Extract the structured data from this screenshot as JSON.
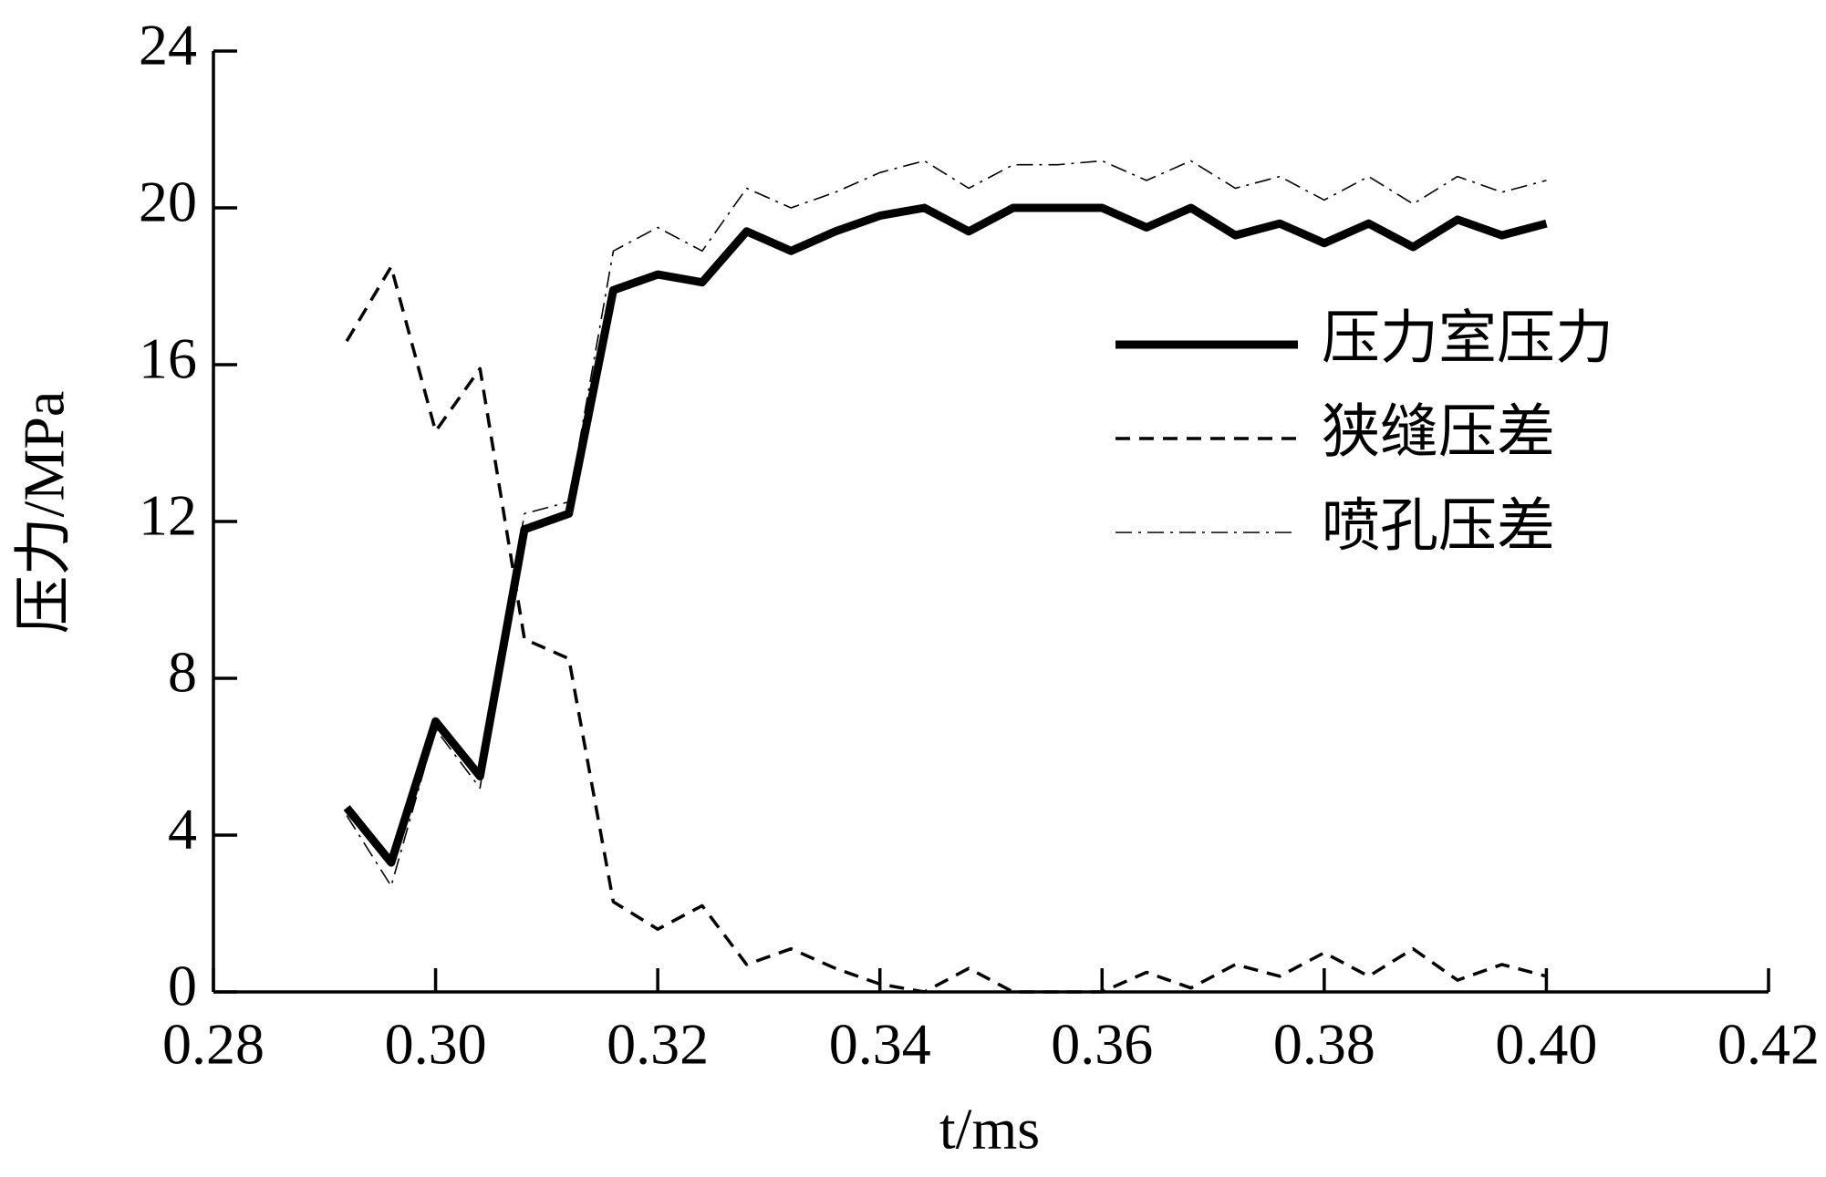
{
  "chart_data": {
    "type": "line",
    "x_label": "t/ms",
    "y_label": "压力/MPa",
    "x": [
      0.292,
      0.296,
      0.3,
      0.304,
      0.308,
      0.312,
      0.316,
      0.32,
      0.324,
      0.328,
      0.332,
      0.336,
      0.34,
      0.344,
      0.348,
      0.352,
      0.356,
      0.36,
      0.364,
      0.368,
      0.372,
      0.376,
      0.38,
      0.384,
      0.388,
      0.392,
      0.396,
      0.4
    ],
    "series": [
      {
        "name": "压力室压力",
        "color": "#000000",
        "style": "solid",
        "values": [
          4.7,
          3.3,
          6.9,
          5.5,
          11.8,
          12.2,
          17.9,
          18.3,
          18.1,
          19.4,
          18.9,
          19.4,
          19.8,
          20.0,
          19.4,
          20.0,
          20.0,
          20.0,
          19.5,
          20.0,
          19.3,
          19.6,
          19.1,
          19.6,
          19.0,
          19.7,
          19.3,
          19.6
        ]
      },
      {
        "name": "狭缝压差",
        "color": "#000000",
        "style": "dashed",
        "values": [
          16.6,
          18.5,
          14.3,
          15.9,
          9.0,
          8.5,
          2.3,
          1.6,
          2.2,
          0.7,
          1.1,
          0.6,
          0.2,
          0.0,
          0.6,
          0.0,
          0.0,
          0.0,
          0.5,
          0.1,
          0.7,
          0.4,
          1.0,
          0.4,
          1.1,
          0.3,
          0.7,
          0.4
        ]
      },
      {
        "name": "喷孔压差",
        "color": "#000000",
        "style": "dashdot",
        "values": [
          4.5,
          2.7,
          6.7,
          5.2,
          12.2,
          12.5,
          18.9,
          19.5,
          18.9,
          20.5,
          20.0,
          20.4,
          20.9,
          21.2,
          20.5,
          21.1,
          21.1,
          21.2,
          20.7,
          21.2,
          20.5,
          20.8,
          20.2,
          20.8,
          20.1,
          20.8,
          20.4,
          20.7
        ]
      }
    ],
    "xlim": [
      0.28,
      0.42
    ],
    "xticks": [
      0.28,
      {
        "value": 0.3,
        "label": "0.30"
      },
      0.32,
      0.34,
      0.36,
      0.38,
      {
        "value": 0.4,
        "label": "0.40"
      },
      0.42
    ],
    "ylim": [
      0,
      24
    ],
    "yticks": [
      0,
      4,
      8,
      12,
      16,
      20,
      24
    ],
    "grid": false,
    "legend": "right"
  }
}
